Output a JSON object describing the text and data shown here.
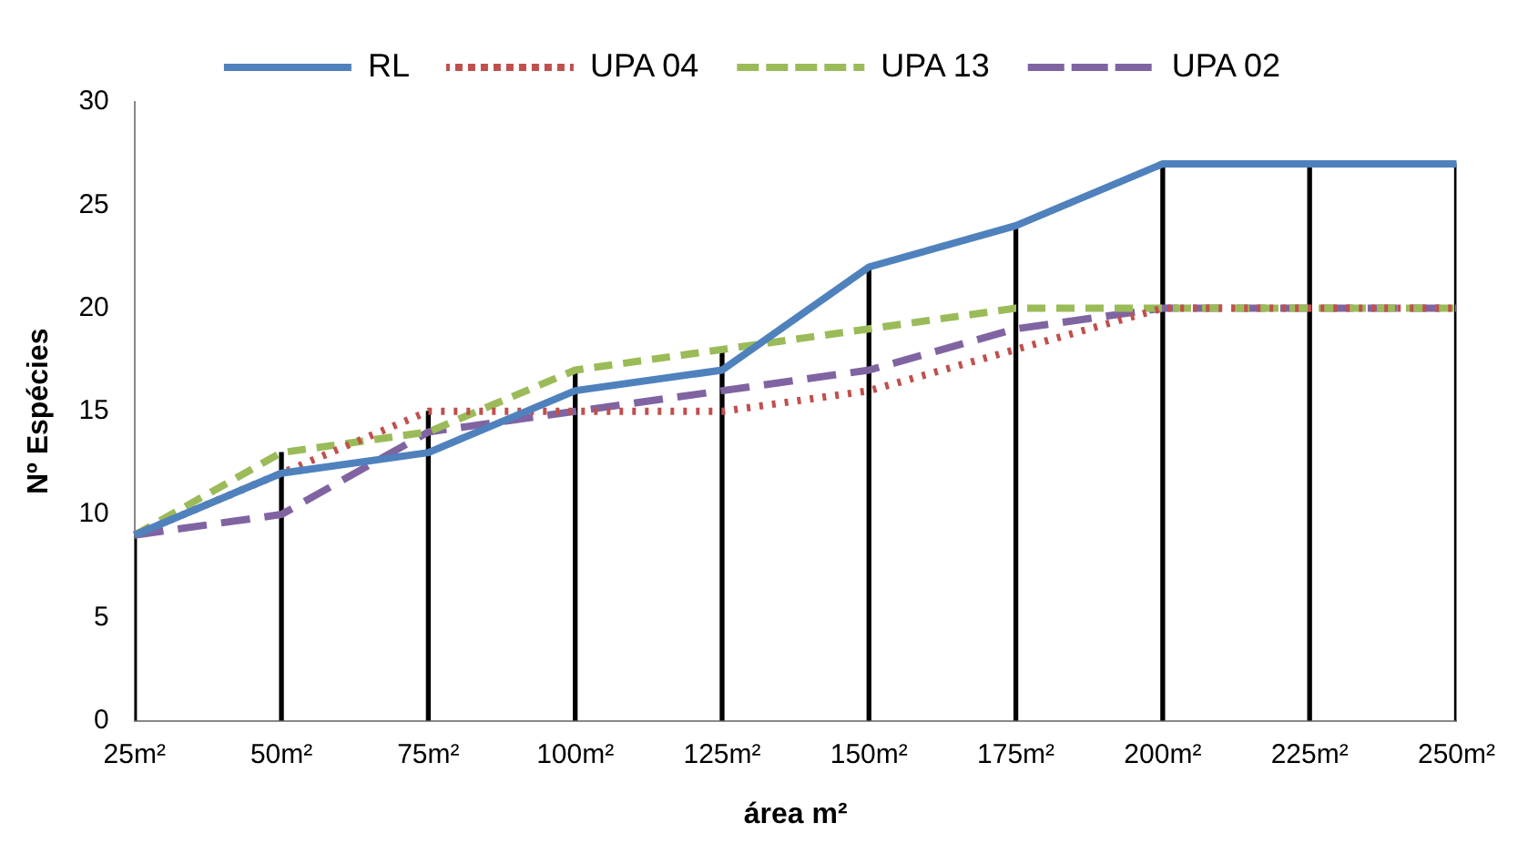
{
  "chart_data": {
    "type": "line",
    "xlabel": "área m²",
    "ylabel": "Nº Espécies",
    "categories": [
      "25m²",
      "50m²",
      "75m²",
      "100m²",
      "125m²",
      "150m²",
      "175m²",
      "200m²",
      "225m²",
      "250m²"
    ],
    "series": [
      {
        "name": "RL",
        "color": "#4f81bd",
        "line_style": "solid",
        "values": [
          9,
          12,
          13,
          16,
          17,
          22,
          24,
          27,
          27,
          27
        ]
      },
      {
        "name": "UPA 04",
        "color": "#c0504d",
        "line_style": "dotted",
        "values": [
          9,
          12,
          15,
          15,
          15,
          16,
          18,
          20,
          20,
          20
        ]
      },
      {
        "name": "UPA 13",
        "color": "#9bbb59",
        "line_style": "dashed",
        "values": [
          9,
          13,
          14,
          17,
          18,
          19,
          20,
          20,
          20,
          20
        ]
      },
      {
        "name": "UPA 02",
        "color": "#8064a2",
        "line_style": "dashed",
        "values": [
          9,
          10,
          14,
          15,
          16,
          17,
          19,
          20,
          20,
          20
        ]
      },
      {
        "type": "bar",
        "color": "#000000",
        "values": [
          9,
          13,
          15,
          17,
          18,
          22,
          24,
          27,
          27,
          27
        ]
      }
    ],
    "ylim": [
      0,
      30
    ],
    "yticks": [
      0,
      5,
      10,
      15,
      20,
      25,
      30
    ],
    "grid": false,
    "legend": "top",
    "marker": "none"
  }
}
